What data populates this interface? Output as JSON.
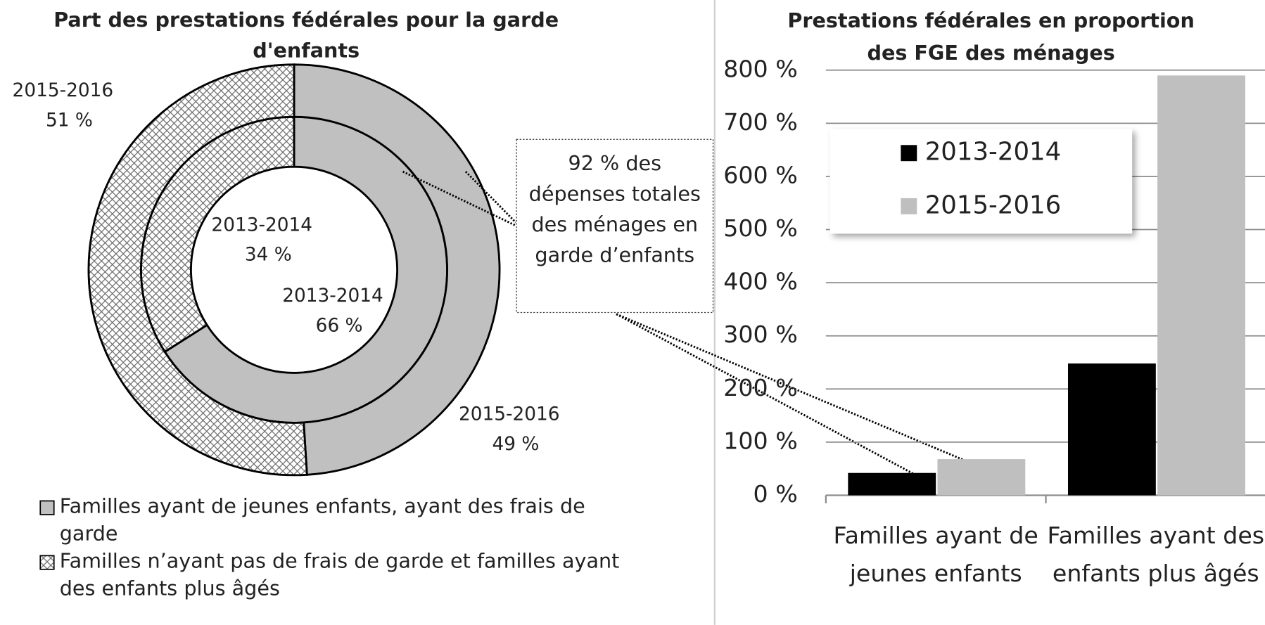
{
  "chart_data": [
    {
      "type": "donut",
      "title": "Part des prestations fédérales pour la garde d'enfants",
      "categories": [
        "Familles ayant de jeunes enfants, ayant des frais de garde",
        "Familles n’ayant pas de frais de garde et familles ayant des enfants plus âgés"
      ],
      "colors": [
        "#c0c0c0",
        "#ffffff"
      ],
      "patterns": [
        "solid",
        "crosshatch"
      ],
      "series": [
        {
          "name": "2013-2014",
          "values": [
            66,
            34
          ],
          "value_labels": [
            "66 %",
            "34 %"
          ]
        },
        {
          "name": "2015-2016",
          "values": [
            49,
            51
          ],
          "value_labels": [
            "49 %",
            "51 %"
          ]
        }
      ],
      "annotation": "92 % des dépenses totales des ménages en garde d’enfants"
    },
    {
      "type": "bar",
      "title": "Prestations fédérales en proportion des FGE des ménages",
      "categories": [
        "Familles ayant de jeunes enfants",
        "Familles ayant des enfants plus âgés"
      ],
      "series": [
        {
          "name": "2013-2014",
          "color": "#000000",
          "values": [
            42,
            248
          ]
        },
        {
          "name": "2015-2016",
          "color": "#bfbfbf",
          "values": [
            68,
            790
          ]
        }
      ],
      "ylim": [
        0,
        800
      ],
      "yticks": [
        {
          "value": 0,
          "label": "0 %"
        },
        {
          "value": 100,
          "label": "100 %"
        },
        {
          "value": 200,
          "label": "200 %"
        },
        {
          "value": 300,
          "label": "300 %"
        },
        {
          "value": 400,
          "label": "400 %"
        },
        {
          "value": 500,
          "label": "500 %"
        },
        {
          "value": 600,
          "label": "600 %"
        },
        {
          "value": 700,
          "label": "700 %"
        },
        {
          "value": 800,
          "label": "800 %"
        }
      ],
      "grid": true
    }
  ]
}
